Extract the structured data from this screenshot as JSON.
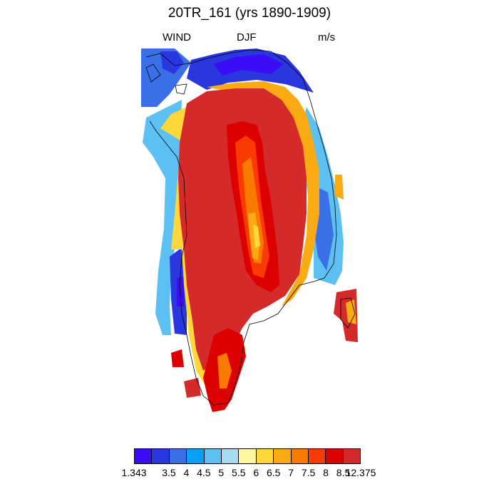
{
  "title": "20TR_161 (yrs 1890-1909)",
  "left_label": "WIND",
  "center_label": "DJF",
  "right_label": "m/s",
  "colorbar": {
    "colors": [
      "#3a0df5",
      "#2a36de",
      "#3a6fe8",
      "#079ff7",
      "#5cc0f2",
      "#a8daf2",
      "#fff89e",
      "#fcd83a",
      "#faab14",
      "#fa7a00",
      "#f93a02",
      "#dc0000",
      "#d42a2a"
    ],
    "labels": [
      "1.343",
      "3.5",
      "4",
      "4.5",
      "5",
      "5.5",
      "6",
      "6.5",
      "7",
      "7.5",
      "8",
      "8.5",
      "12.375"
    ]
  },
  "map_data": {
    "region": "Greenland",
    "variable": "WIND",
    "season": "DJF",
    "units": "m/s",
    "field": "gridded wind speed, strongest (>8.5 m/s) over the interior ice sheet, weakest (<5 m/s) along the northern and western coastal margins"
  }
}
